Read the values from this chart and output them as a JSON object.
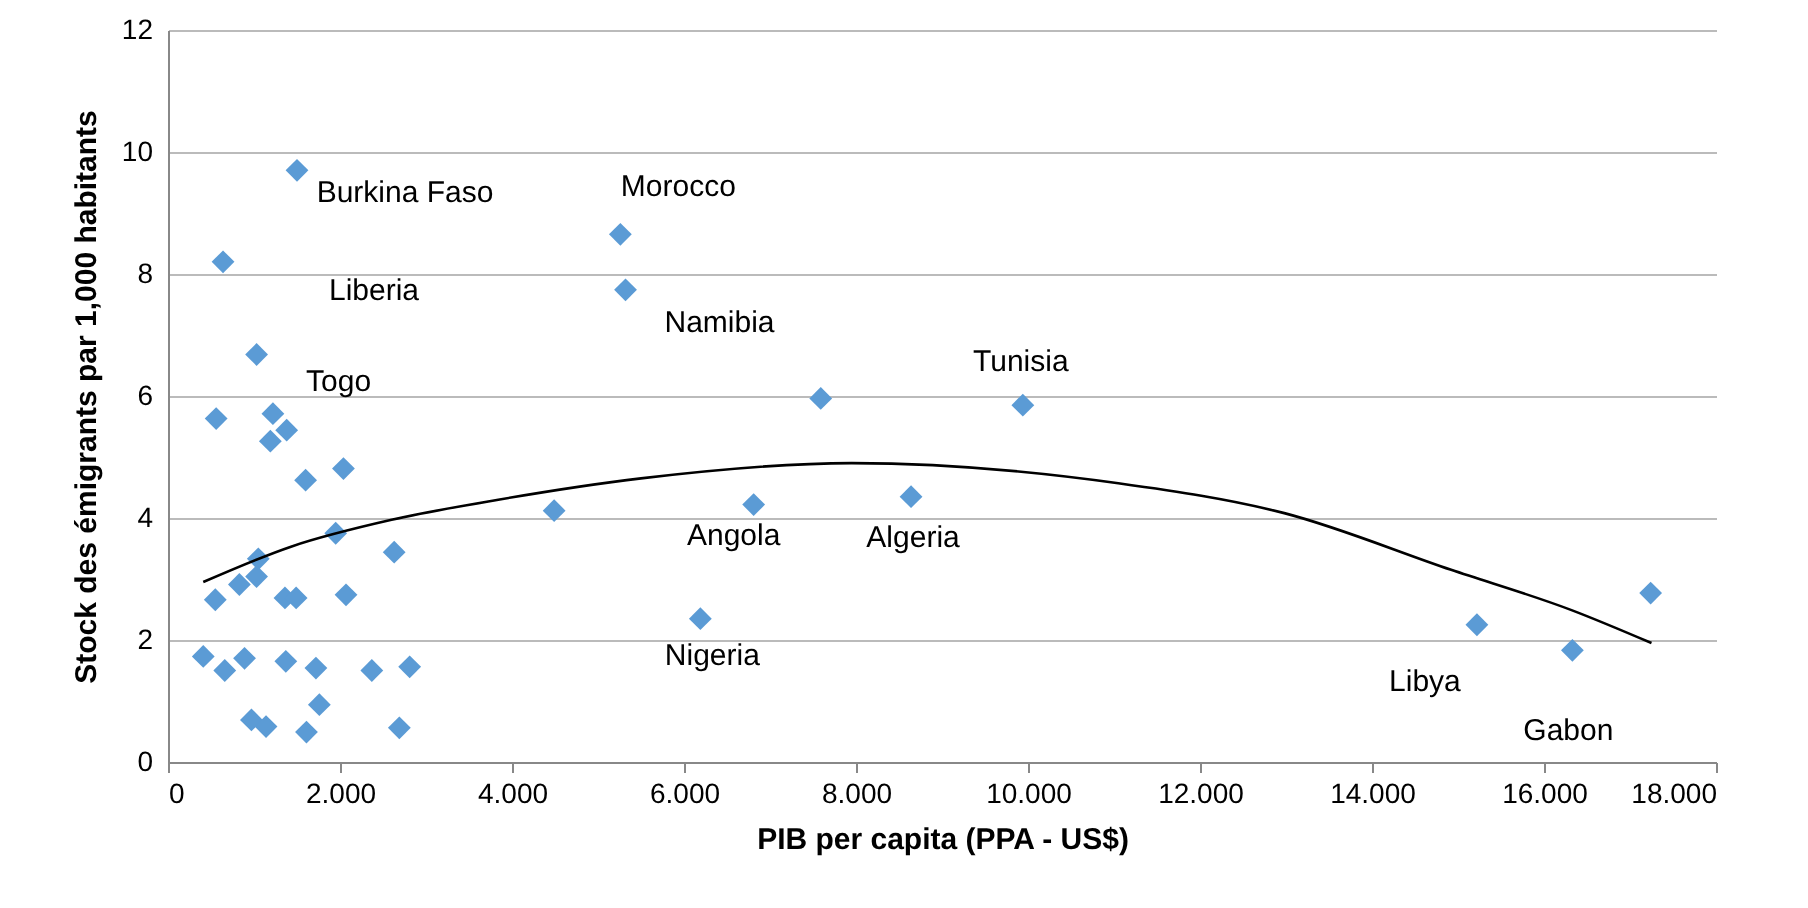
{
  "chart_data": {
    "type": "scatter",
    "xlabel": "PIB per capita (PPA - US$)",
    "ylabel": "Stock des émigrants par 1,000 habitants",
    "xlim": [
      0,
      18000
    ],
    "xticks": [
      0,
      {
        "value": 2000,
        "label": "2.000"
      },
      {
        "value": 4000,
        "label": "4.000"
      },
      {
        "value": 6000,
        "label": "6.000"
      },
      {
        "value": 8000,
        "label": "8.000"
      },
      {
        "value": 10000,
        "label": "10.000"
      },
      {
        "value": 12000,
        "label": "12.000"
      },
      {
        "value": 14000,
        "label": "14.000"
      },
      {
        "value": 16000,
        "label": "16.000"
      },
      {
        "value": 18000,
        "label": "18.000"
      }
    ],
    "ylim": [
      0,
      12
    ],
    "yticks": [
      0,
      2,
      4,
      6,
      8,
      10,
      12
    ],
    "grid": "y",
    "marker": "diamond",
    "series": [
      {
        "color": "#5b9bd5",
        "x": [
          1500,
          640,
          1030,
          560,
          1220,
          1380,
          1190,
          1600,
          2040,
          4490,
          1950,
          2630,
          1050,
          1030,
          830,
          550,
          1360,
          1490,
          2070,
          410,
          660,
          890,
          1370,
          1720,
          2370,
          2810,
          970,
          1140,
          1760,
          1610,
          2690,
          5260,
          5320,
          7590,
          9940,
          6810,
          8640,
          6190,
          15220,
          16330,
          17240
        ],
        "values": [
          9.7,
          8.2,
          6.68,
          5.63,
          5.71,
          5.44,
          5.26,
          4.62,
          4.81,
          4.12,
          3.75,
          3.44,
          3.33,
          3.04,
          2.91,
          2.66,
          2.69,
          2.69,
          2.74,
          1.73,
          1.5,
          1.7,
          1.65,
          1.54,
          1.5,
          1.56,
          0.69,
          0.58,
          0.94,
          0.49,
          0.56,
          8.65,
          7.74,
          5.96,
          5.85,
          4.22,
          4.35,
          2.35,
          2.25,
          1.83,
          2.77
        ]
      },
      {
        "type": "line",
        "color": "#000000",
        "marker": "none",
        "x": [
          410,
          1430,
          2600,
          3840,
          5500,
          7950,
          11050,
          12980,
          14920,
          16320,
          17250
        ],
        "values": [
          2.95,
          3.53,
          3.97,
          4.3,
          4.65,
          4.9,
          4.57,
          4.08,
          3.15,
          2.49,
          1.95
        ]
      }
    ],
    "annotations": [
      {
        "text": "Burkina Faso",
        "x": 1500,
        "y": 9.7
      },
      {
        "text": "Morocco",
        "x": 5260,
        "y": 8.65
      },
      "Liberia",
      {
        "text": "Namibia",
        "x": 5320,
        "y": 7.74
      },
      {
        "text": "Togo",
        "x": 1030,
        "y": 6.68
      },
      {
        "text": "Tunisia",
        "x": 9940,
        "y": 5.85
      },
      {
        "text": "Angola",
        "x": 6810,
        "y": 4.22
      },
      {
        "text": "Algeria",
        "x": 8640,
        "y": 4.35
      },
      {
        "text": "Nigeria",
        "x": 6190,
        "y": 2.35
      },
      {
        "text": "Libya",
        "x": 15220,
        "y": 2.25
      },
      {
        "text": "Gabon",
        "x": 16330,
        "y": 1.83
      }
    ]
  }
}
